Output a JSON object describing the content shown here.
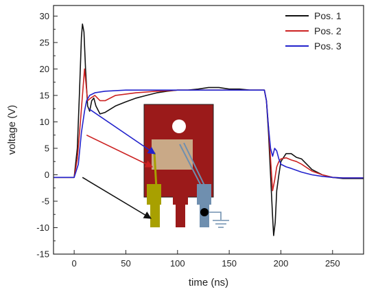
{
  "chart_data": {
    "type": "line",
    "xlabel": "time (ns)",
    "ylabel": "voltage (V)",
    "xlim": [
      -20,
      280
    ],
    "ylim": [
      -15,
      32
    ],
    "x_ticks": [
      0,
      50,
      100,
      150,
      200,
      250
    ],
    "y_ticks": [
      -15,
      -10,
      -5,
      0,
      5,
      10,
      15,
      20,
      25,
      30
    ],
    "legend_position": "top-right",
    "grid": false,
    "series": [
      {
        "name": "Pos. 1",
        "color": "#111111",
        "points": [
          [
            -20,
            -0.5
          ],
          [
            0,
            -0.5
          ],
          [
            3,
            5
          ],
          [
            5,
            15
          ],
          [
            7,
            26
          ],
          [
            8,
            28.5
          ],
          [
            9.5,
            27
          ],
          [
            11,
            20
          ],
          [
            13,
            13
          ],
          [
            15,
            12
          ],
          [
            17,
            14
          ],
          [
            19,
            14.5
          ],
          [
            21,
            13
          ],
          [
            25,
            11.5
          ],
          [
            30,
            11.8
          ],
          [
            40,
            13
          ],
          [
            50,
            13.8
          ],
          [
            60,
            14.5
          ],
          [
            70,
            15
          ],
          [
            80,
            15.5
          ],
          [
            90,
            15.8
          ],
          [
            100,
            16
          ],
          [
            110,
            16
          ],
          [
            120,
            16.2
          ],
          [
            130,
            16.5
          ],
          [
            140,
            16.5
          ],
          [
            150,
            16.2
          ],
          [
            160,
            16.2
          ],
          [
            170,
            16
          ],
          [
            180,
            16
          ],
          [
            184,
            16
          ],
          [
            186,
            14
          ],
          [
            188,
            8
          ],
          [
            190,
            0
          ],
          [
            192,
            -8
          ],
          [
            193,
            -11.5
          ],
          [
            194.5,
            -9
          ],
          [
            196,
            -3
          ],
          [
            198,
            0
          ],
          [
            200,
            2.5
          ],
          [
            205,
            4
          ],
          [
            210,
            4
          ],
          [
            215,
            3.3
          ],
          [
            220,
            3
          ],
          [
            225,
            2
          ],
          [
            230,
            1
          ],
          [
            240,
            0
          ],
          [
            250,
            -0.5
          ],
          [
            260,
            -0.7
          ],
          [
            270,
            -0.7
          ],
          [
            280,
            -0.7
          ]
        ]
      },
      {
        "name": "Pos. 2",
        "color": "#cc2222",
        "points": [
          [
            -20,
            -0.5
          ],
          [
            0,
            -0.5
          ],
          [
            3,
            3
          ],
          [
            6,
            10
          ],
          [
            8,
            15
          ],
          [
            10,
            20
          ],
          [
            11.5,
            17
          ],
          [
            13,
            14
          ],
          [
            16,
            14.5
          ],
          [
            20,
            15
          ],
          [
            25,
            14
          ],
          [
            30,
            14
          ],
          [
            40,
            15
          ],
          [
            60,
            15.5
          ],
          [
            80,
            15.8
          ],
          [
            100,
            16
          ],
          [
            120,
            16
          ],
          [
            140,
            16
          ],
          [
            160,
            16
          ],
          [
            180,
            16
          ],
          [
            184,
            16
          ],
          [
            186,
            14
          ],
          [
            188,
            9
          ],
          [
            190,
            3
          ],
          [
            192,
            -3
          ],
          [
            194,
            -1
          ],
          [
            196,
            1.5
          ],
          [
            198,
            2.5
          ],
          [
            200,
            3
          ],
          [
            205,
            3.2
          ],
          [
            210,
            2.8
          ],
          [
            215,
            2.5
          ],
          [
            220,
            2
          ],
          [
            230,
            0.7
          ],
          [
            240,
            0
          ],
          [
            250,
            -0.5
          ],
          [
            260,
            -0.6
          ],
          [
            280,
            -0.6
          ]
        ]
      },
      {
        "name": "Pos. 3",
        "color": "#2222cc",
        "points": [
          [
            -20,
            -0.5
          ],
          [
            0,
            -0.5
          ],
          [
            4,
            2
          ],
          [
            7,
            8
          ],
          [
            10,
            12
          ],
          [
            12,
            14
          ],
          [
            15,
            15
          ],
          [
            20,
            15.5
          ],
          [
            30,
            15.8
          ],
          [
            50,
            16
          ],
          [
            70,
            16
          ],
          [
            90,
            16
          ],
          [
            110,
            16
          ],
          [
            130,
            16
          ],
          [
            150,
            16
          ],
          [
            170,
            16
          ],
          [
            180,
            16
          ],
          [
            184,
            16
          ],
          [
            186,
            14
          ],
          [
            188,
            9
          ],
          [
            190,
            5
          ],
          [
            192,
            3.5
          ],
          [
            194,
            5
          ],
          [
            196,
            4.5
          ],
          [
            198,
            3
          ],
          [
            200,
            2
          ],
          [
            205,
            1.5
          ],
          [
            210,
            1.2
          ],
          [
            220,
            0.5
          ],
          [
            230,
            0
          ],
          [
            240,
            -0.3
          ],
          [
            250,
            -0.5
          ],
          [
            260,
            -0.6
          ],
          [
            280,
            -0.6
          ]
        ]
      }
    ]
  },
  "inset": {
    "body_color": "#9b1a1a",
    "die_color": "#c9a987",
    "lead_left_color": "#a8a000",
    "lead_middle_color": "#9b1a1a",
    "lead_right_color": "#6f8faf",
    "wire_color": "#6f8faf",
    "ground_color": "#6f8faf",
    "arrows": [
      {
        "series": "Pos. 1",
        "color": "#111111",
        "from": [
          8,
          -0.5
        ],
        "target": "left-lead"
      },
      {
        "series": "Pos. 2",
        "color": "#cc2222",
        "from": [
          12,
          7.5
        ],
        "target": "lead-bond"
      },
      {
        "series": "Pos. 3",
        "color": "#2222cc",
        "from": [
          14,
          12.5
        ],
        "target": "die"
      }
    ]
  }
}
